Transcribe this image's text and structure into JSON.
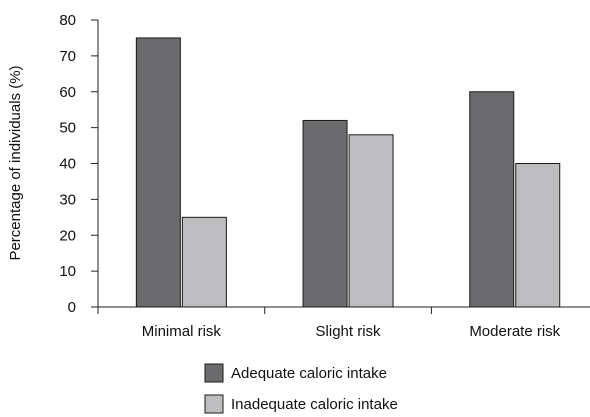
{
  "chart_data": {
    "type": "bar",
    "title": "",
    "xlabel": "",
    "ylabel": "Percentage of individuals (%)",
    "ylim": [
      0,
      80
    ],
    "yticks": [
      0,
      10,
      20,
      30,
      40,
      50,
      60,
      70,
      80
    ],
    "categories": [
      "Minimal risk",
      "Slight risk",
      "Moderate risk"
    ],
    "series": [
      {
        "name": "Adequate caloric intake",
        "values": [
          75,
          52,
          60
        ],
        "color": "#6b6b6e"
      },
      {
        "name": "Inadequate caloric intake",
        "values": [
          25,
          48,
          40
        ],
        "color": "#bdbdc0"
      }
    ],
    "grid": false,
    "legend_position": "bottom"
  }
}
